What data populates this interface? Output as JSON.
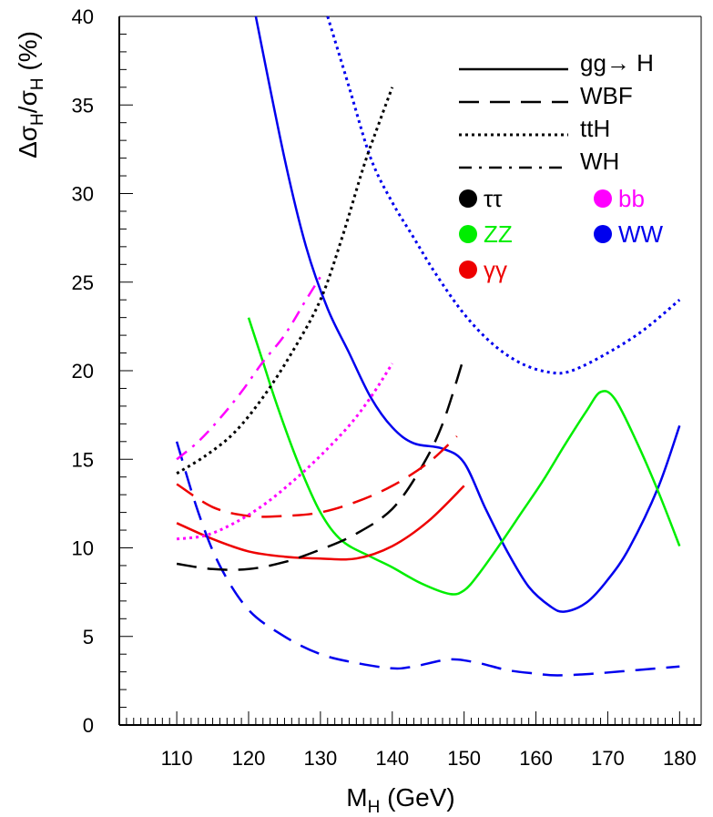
{
  "chart_data": {
    "type": "line",
    "xlabel": {
      "main": "M",
      "sub": "H",
      "rest": " (GeV)"
    },
    "ylabel": {
      "p1": "Δσ",
      "s1": "H",
      "p2": "/σ",
      "s2": "H",
      "p3": " (%)"
    },
    "xlim": [
      102,
      183
    ],
    "ylim": [
      0,
      40
    ],
    "xticks": [
      110,
      120,
      130,
      140,
      150,
      160,
      170,
      180
    ],
    "yticks": [
      0,
      5,
      10,
      15,
      20,
      25,
      30,
      35,
      40
    ],
    "grid": false,
    "legend_position": "top-right",
    "production_legend": [
      {
        "label": "gg→ H",
        "style": "solid"
      },
      {
        "label": "WBF",
        "style": "dashed"
      },
      {
        "label": "ttH",
        "style": "dotted"
      },
      {
        "label": "WH",
        "style": "dashdot"
      }
    ],
    "decay_legend": [
      {
        "label": "ττ",
        "color": "#000000"
      },
      {
        "label": "bb",
        "color": "#ff00ff"
      },
      {
        "label": "ZZ",
        "color": "#00ee00"
      },
      {
        "label": "WW",
        "color": "#0000ee"
      },
      {
        "label": "γγ",
        "color": "#ee0000"
      }
    ],
    "series": [
      {
        "production": "gg→ H",
        "decay": "WW",
        "style": "solid",
        "color": "#0000ee",
        "points": [
          [
            121,
            40
          ],
          [
            125,
            32
          ],
          [
            128,
            27
          ],
          [
            131,
            23.5
          ],
          [
            134,
            21
          ],
          [
            137,
            18.5
          ],
          [
            140,
            16.8
          ],
          [
            143,
            15.9
          ],
          [
            147,
            15.6
          ],
          [
            150,
            14.8
          ],
          [
            153,
            12.2
          ],
          [
            156,
            9.8
          ],
          [
            159,
            7.8
          ],
          [
            162,
            6.7
          ],
          [
            164,
            6.4
          ],
          [
            167,
            6.9
          ],
          [
            170,
            8.2
          ],
          [
            173,
            10.0
          ],
          [
            177,
            13.4
          ],
          [
            180,
            16.9
          ]
        ]
      },
      {
        "production": "gg→ H",
        "decay": "ZZ",
        "style": "solid",
        "color": "#00ee00",
        "points": [
          [
            120,
            23.0
          ],
          [
            122,
            20.5
          ],
          [
            124,
            18.0
          ],
          [
            127,
            14.7
          ],
          [
            130,
            12.0
          ],
          [
            133,
            10.4
          ],
          [
            137,
            9.5
          ],
          [
            140,
            8.9
          ],
          [
            144,
            8.0
          ],
          [
            148,
            7.4
          ],
          [
            150,
            7.6
          ],
          [
            152,
            8.5
          ],
          [
            155,
            10.2
          ],
          [
            158,
            12.0
          ],
          [
            161,
            13.8
          ],
          [
            164,
            15.8
          ],
          [
            167,
            17.7
          ],
          [
            169,
            18.8
          ],
          [
            171,
            18.4
          ],
          [
            174,
            16.0
          ],
          [
            177,
            13.2
          ],
          [
            180,
            10.1
          ]
        ]
      },
      {
        "production": "gg→ H",
        "decay": "γγ",
        "style": "solid",
        "color": "#ee0000",
        "points": [
          [
            110,
            11.4
          ],
          [
            115,
            10.5
          ],
          [
            120,
            9.8
          ],
          [
            125,
            9.5
          ],
          [
            130,
            9.4
          ],
          [
            135,
            9.4
          ],
          [
            140,
            10.1
          ],
          [
            145,
            11.5
          ],
          [
            150,
            13.5
          ]
        ]
      },
      {
        "production": "WBF",
        "decay": "WW",
        "style": "dashed",
        "color": "#0000ee",
        "points": [
          [
            110,
            16.0
          ],
          [
            113,
            12.0
          ],
          [
            116,
            9.0
          ],
          [
            120,
            6.5
          ],
          [
            125,
            5.0
          ],
          [
            130,
            4.0
          ],
          [
            135,
            3.5
          ],
          [
            140,
            3.2
          ],
          [
            143,
            3.3
          ],
          [
            148,
            3.7
          ],
          [
            152,
            3.5
          ],
          [
            156,
            3.1
          ],
          [
            160,
            2.9
          ],
          [
            163,
            2.8
          ],
          [
            168,
            2.9
          ],
          [
            174,
            3.1
          ],
          [
            180,
            3.3
          ]
        ]
      },
      {
        "production": "WBF",
        "decay": "ττ",
        "style": "dashed",
        "color": "#000000",
        "points": [
          [
            110,
            9.1
          ],
          [
            115,
            8.8
          ],
          [
            120,
            8.8
          ],
          [
            125,
            9.2
          ],
          [
            130,
            9.9
          ],
          [
            135,
            10.8
          ],
          [
            140,
            12.2
          ],
          [
            144,
            14.5
          ],
          [
            147,
            17.0
          ],
          [
            150,
            20.8
          ]
        ]
      },
      {
        "production": "WBF",
        "decay": "γγ",
        "style": "dashed",
        "color": "#ee0000",
        "points": [
          [
            110,
            13.6
          ],
          [
            115,
            12.3
          ],
          [
            120,
            11.8
          ],
          [
            125,
            11.8
          ],
          [
            130,
            12.0
          ],
          [
            135,
            12.6
          ],
          [
            140,
            13.5
          ],
          [
            145,
            14.8
          ],
          [
            149,
            16.3
          ]
        ]
      },
      {
        "production": "ttH",
        "decay": "WW",
        "style": "dotted",
        "color": "#0000ee",
        "points": [
          [
            131,
            40
          ],
          [
            134,
            36
          ],
          [
            137,
            32
          ],
          [
            140,
            29.5
          ],
          [
            143,
            27.5
          ],
          [
            146,
            25.5
          ],
          [
            150,
            23.2
          ],
          [
            154,
            21.5
          ],
          [
            158,
            20.4
          ],
          [
            162,
            19.9
          ],
          [
            165,
            20.0
          ],
          [
            170,
            21.0
          ],
          [
            175,
            22.3
          ],
          [
            180,
            24.0
          ]
        ]
      },
      {
        "production": "ttH",
        "decay": "ττ",
        "style": "dotted",
        "color": "#000000",
        "points": [
          [
            110,
            14.2
          ],
          [
            114,
            15.2
          ],
          [
            118,
            16.5
          ],
          [
            122,
            18.5
          ],
          [
            126,
            21.0
          ],
          [
            130,
            24.0
          ],
          [
            133,
            27.5
          ],
          [
            136,
            31.5
          ],
          [
            138,
            33.8
          ],
          [
            140,
            36.0
          ]
        ]
      },
      {
        "production": "ttH",
        "decay": "bb",
        "style": "dotted",
        "color": "#ff00ff",
        "points": [
          [
            110,
            10.5
          ],
          [
            114,
            10.7
          ],
          [
            118,
            11.4
          ],
          [
            122,
            12.4
          ],
          [
            126,
            13.7
          ],
          [
            130,
            15.2
          ],
          [
            134,
            16.9
          ],
          [
            137,
            18.5
          ],
          [
            140,
            20.4
          ]
        ]
      },
      {
        "production": "WH",
        "decay": "bb",
        "style": "dashdot",
        "color": "#ff00ff",
        "points": [
          [
            110,
            15.0
          ],
          [
            113,
            16.0
          ],
          [
            116,
            17.3
          ],
          [
            119,
            18.8
          ],
          [
            122,
            20.5
          ],
          [
            125,
            22.0
          ],
          [
            128,
            24.0
          ],
          [
            130,
            25.3
          ]
        ]
      }
    ]
  }
}
